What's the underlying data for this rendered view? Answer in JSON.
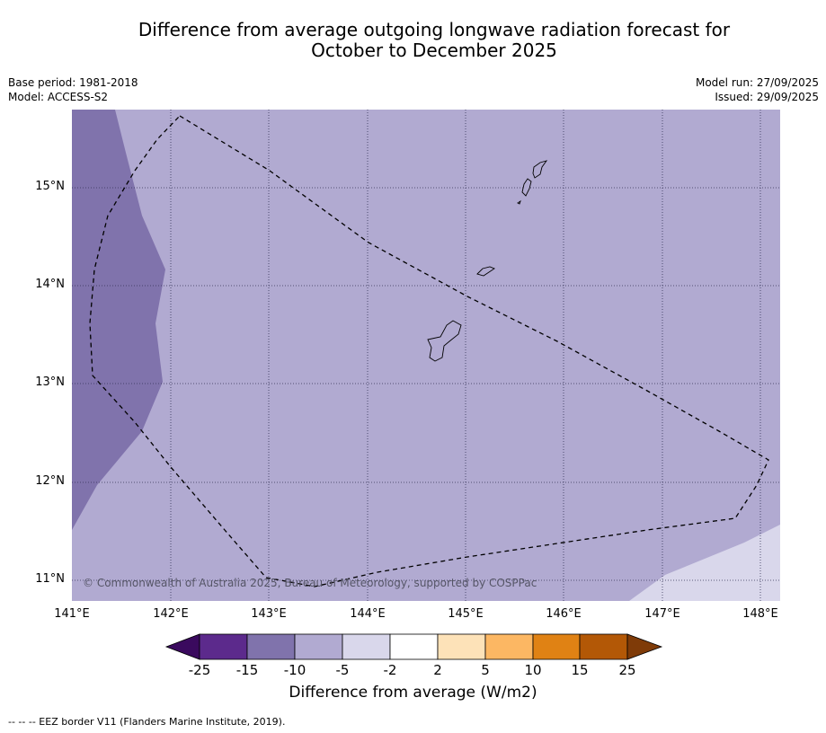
{
  "title_line1": "Difference from average outgoing longwave radiation forecast for",
  "title_line2": "October to December 2025",
  "meta": {
    "base_period": "Base period: 1981-2018",
    "model": "Model: ACCESS-S2",
    "model_run": "Model run: 27/09/2025",
    "issued": "Issued: 29/09/2025"
  },
  "axes": {
    "lat_labels": [
      "15°N",
      "14°N",
      "13°N",
      "12°N",
      "11°N"
    ],
    "lon_labels": [
      "141°E",
      "142°E",
      "143°E",
      "144°E",
      "145°E",
      "146°E",
      "147°E",
      "148°E"
    ]
  },
  "colorbar": {
    "tick_labels": [
      "-25",
      "-15",
      "-10",
      "-5",
      "-2",
      "2",
      "5",
      "10",
      "15",
      "25"
    ],
    "colors": [
      "#3a0a5e",
      "#5c2a8c",
      "#8073ac",
      "#b1aad1",
      "#d9d7eb",
      "#ffffff",
      "#fde2b8",
      "#fcb763",
      "#e08214",
      "#b35806",
      "#7f3b08"
    ],
    "title": "Difference from average (W/m2)"
  },
  "map_colors": {
    "moderate_below": "#8073ac",
    "below": "#b1aad1",
    "slightly_below": "#d9d7eb"
  },
  "copyright": "© Commonwealth of Australia 2025, Bureau of Meteorology, supported by COSPPac",
  "footnote": "--  --  -- EEZ border V11 (Flanders Marine Institute, 2019)."
}
